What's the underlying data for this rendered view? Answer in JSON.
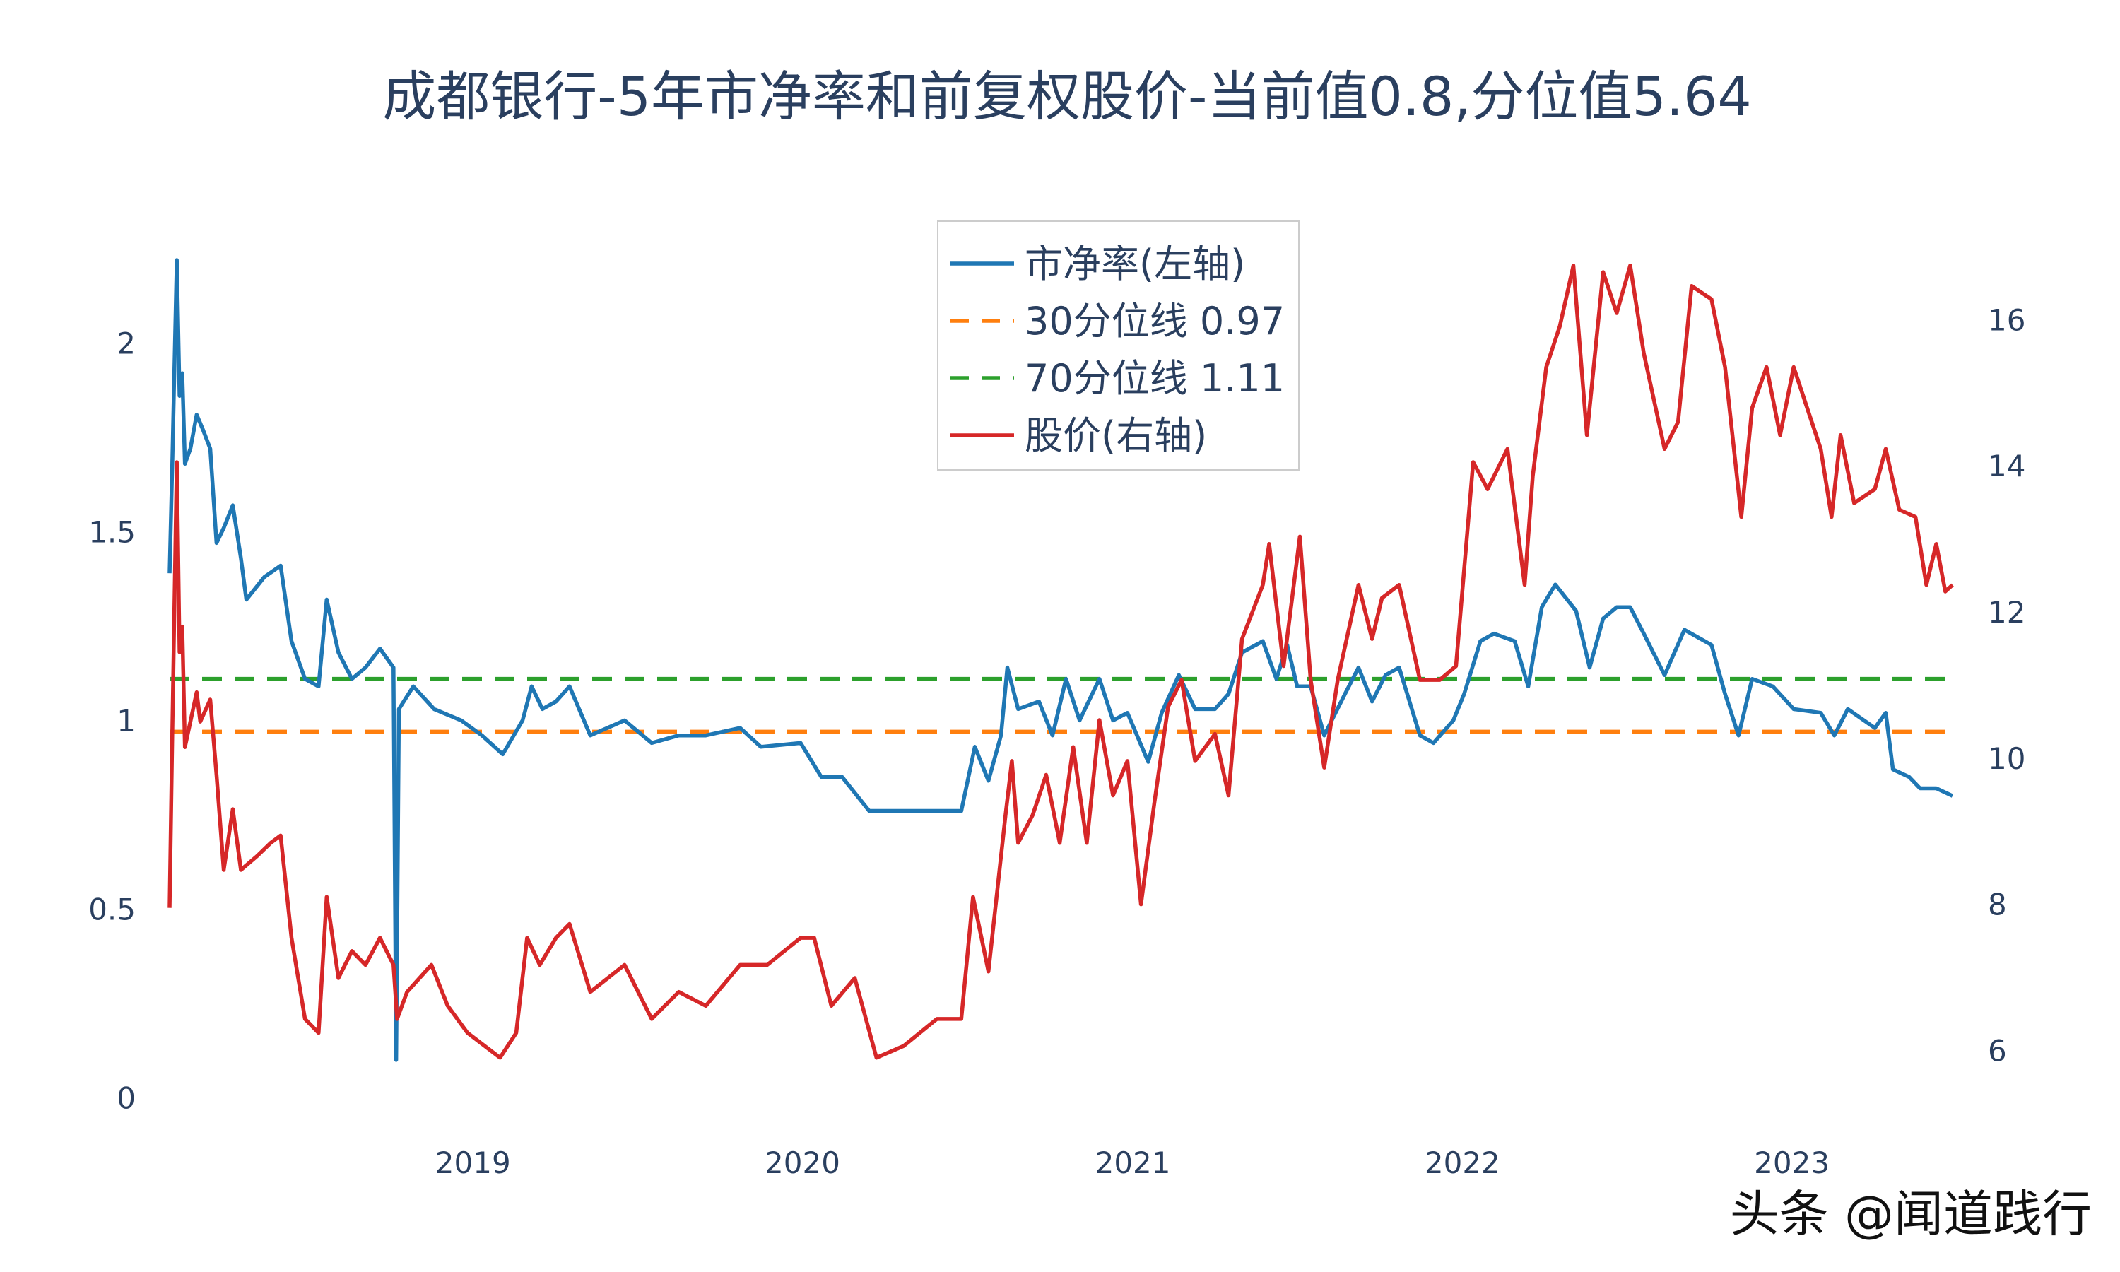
{
  "chart_data": {
    "type": "line",
    "title": "成都银行-5年市净率和前复权股价-当前值0.8,分位值5.64",
    "xlabel": "",
    "ylabel_left": "",
    "ylabel_right": "",
    "x_range": [
      "2018-01-30",
      "2023-06-28"
    ],
    "x_ticks": [
      {
        "date": "2019-01-01",
        "label": "2019"
      },
      {
        "date": "2020-01-01",
        "label": "2020"
      },
      {
        "date": "2021-01-01",
        "label": "2021"
      },
      {
        "date": "2022-01-01",
        "label": "2022"
      },
      {
        "date": "2023-01-01",
        "label": "2023"
      }
    ],
    "y_left_range": [
      -0.08,
      2.25
    ],
    "y_left_ticks": [
      {
        "value": 0,
        "label": "0"
      },
      {
        "value": 0.5,
        "label": "0.5"
      },
      {
        "value": 1,
        "label": "1"
      },
      {
        "value": 1.5,
        "label": "1.5"
      },
      {
        "value": 2,
        "label": "2"
      }
    ],
    "y_right_range": [
      4.94,
      16.97
    ],
    "y_right_ticks": [
      {
        "value": 6,
        "label": "6"
      },
      {
        "value": 8,
        "label": "8"
      },
      {
        "value": 10,
        "label": "10"
      },
      {
        "value": 12,
        "label": "12"
      },
      {
        "value": 14,
        "label": "14"
      },
      {
        "value": 16,
        "label": "16"
      }
    ],
    "grid": false,
    "legend_placement": "top-center",
    "series": [
      {
        "name": "市净率(左轴)",
        "axis": "left",
        "color": "#1f77b4",
        "dash": "solid",
        "points": [
          [
            "2018-01-30",
            1.39
          ],
          [
            "2018-02-02",
            1.68
          ],
          [
            "2018-02-07",
            2.22
          ],
          [
            "2018-02-10",
            1.86
          ],
          [
            "2018-02-13",
            1.92
          ],
          [
            "2018-02-16",
            1.68
          ],
          [
            "2018-02-22",
            1.72
          ],
          [
            "2018-03-01",
            1.81
          ],
          [
            "2018-03-08",
            1.77
          ],
          [
            "2018-03-16",
            1.72
          ],
          [
            "2018-03-23",
            1.47
          ],
          [
            "2018-03-31",
            1.51
          ],
          [
            "2018-04-10",
            1.57
          ],
          [
            "2018-04-19",
            1.43
          ],
          [
            "2018-04-25",
            1.32
          ],
          [
            "2018-05-15",
            1.38
          ],
          [
            "2018-06-02",
            1.41
          ],
          [
            "2018-06-14",
            1.21
          ],
          [
            "2018-06-29",
            1.11
          ],
          [
            "2018-07-14",
            1.09
          ],
          [
            "2018-07-23",
            1.32
          ],
          [
            "2018-08-05",
            1.18
          ],
          [
            "2018-08-20",
            1.11
          ],
          [
            "2018-09-04",
            1.14
          ],
          [
            "2018-09-20",
            1.19
          ],
          [
            "2018-10-05",
            1.14
          ],
          [
            "2018-10-08",
            0.1
          ],
          [
            "2018-10-11",
            1.03
          ],
          [
            "2018-10-27",
            1.09
          ],
          [
            "2018-11-19",
            1.03
          ],
          [
            "2018-12-19",
            1.0
          ],
          [
            "2019-01-11",
            0.96
          ],
          [
            "2019-02-03",
            0.91
          ],
          [
            "2019-02-25",
            1.0
          ],
          [
            "2019-03-07",
            1.09
          ],
          [
            "2019-03-19",
            1.03
          ],
          [
            "2019-04-03",
            1.05
          ],
          [
            "2019-04-18",
            1.09
          ],
          [
            "2019-05-11",
            0.96
          ],
          [
            "2019-06-18",
            1.0
          ],
          [
            "2019-07-18",
            0.94
          ],
          [
            "2019-08-17",
            0.96
          ],
          [
            "2019-09-16",
            0.96
          ],
          [
            "2019-10-24",
            0.98
          ],
          [
            "2019-11-16",
            0.93
          ],
          [
            "2019-12-30",
            0.94
          ],
          [
            "2020-01-22",
            0.85
          ],
          [
            "2020-02-14",
            0.85
          ],
          [
            "2020-03-15",
            0.76
          ],
          [
            "2020-04-14",
            0.76
          ],
          [
            "2020-05-14",
            0.76
          ],
          [
            "2020-06-25",
            0.76
          ],
          [
            "2020-07-10",
            0.93
          ],
          [
            "2020-07-25",
            0.84
          ],
          [
            "2020-08-08",
            0.96
          ],
          [
            "2020-08-15",
            1.14
          ],
          [
            "2020-08-27",
            1.03
          ],
          [
            "2020-09-19",
            1.05
          ],
          [
            "2020-10-04",
            0.96
          ],
          [
            "2020-10-19",
            1.11
          ],
          [
            "2020-11-03",
            1.0
          ],
          [
            "2020-11-25",
            1.11
          ],
          [
            "2020-12-10",
            1.0
          ],
          [
            "2020-12-26",
            1.02
          ],
          [
            "2021-01-18",
            0.89
          ],
          [
            "2021-02-02",
            1.02
          ],
          [
            "2021-02-21",
            1.12
          ],
          [
            "2021-03-11",
            1.03
          ],
          [
            "2021-04-02",
            1.03
          ],
          [
            "2021-04-17",
            1.07
          ],
          [
            "2021-05-02",
            1.18
          ],
          [
            "2021-05-25",
            1.21
          ],
          [
            "2021-06-09",
            1.11
          ],
          [
            "2021-06-21",
            1.2
          ],
          [
            "2021-07-02",
            1.09
          ],
          [
            "2021-07-17",
            1.09
          ],
          [
            "2021-08-01",
            0.96
          ],
          [
            "2021-08-24",
            1.07
          ],
          [
            "2021-09-08",
            1.14
          ],
          [
            "2021-09-23",
            1.05
          ],
          [
            "2021-10-08",
            1.12
          ],
          [
            "2021-10-23",
            1.14
          ],
          [
            "2021-11-15",
            0.96
          ],
          [
            "2021-11-30",
            0.94
          ],
          [
            "2021-12-22",
            1.0
          ],
          [
            "2022-01-03",
            1.07
          ],
          [
            "2022-01-21",
            1.21
          ],
          [
            "2022-02-05",
            1.23
          ],
          [
            "2022-02-28",
            1.21
          ],
          [
            "2022-03-15",
            1.09
          ],
          [
            "2022-03-30",
            1.3
          ],
          [
            "2022-04-14",
            1.36
          ],
          [
            "2022-05-07",
            1.29
          ],
          [
            "2022-05-22",
            1.14
          ],
          [
            "2022-06-06",
            1.27
          ],
          [
            "2022-06-21",
            1.3
          ],
          [
            "2022-07-06",
            1.3
          ],
          [
            "2022-07-21",
            1.23
          ],
          [
            "2022-08-13",
            1.12
          ],
          [
            "2022-09-04",
            1.24
          ],
          [
            "2022-10-04",
            1.2
          ],
          [
            "2022-10-19",
            1.07
          ],
          [
            "2022-11-03",
            0.96
          ],
          [
            "2022-11-18",
            1.11
          ],
          [
            "2022-12-11",
            1.09
          ],
          [
            "2023-01-03",
            1.03
          ],
          [
            "2023-02-02",
            1.02
          ],
          [
            "2023-02-17",
            0.96
          ],
          [
            "2023-03-04",
            1.03
          ],
          [
            "2023-04-03",
            0.98
          ],
          [
            "2023-04-15",
            1.02
          ],
          [
            "2023-04-23",
            0.87
          ],
          [
            "2023-05-11",
            0.85
          ],
          [
            "2023-05-23",
            0.82
          ],
          [
            "2023-06-10",
            0.82
          ],
          [
            "2023-06-28",
            0.8
          ]
        ]
      },
      {
        "name": "30分位线 0.97",
        "axis": "left",
        "color": "#ff7f0e",
        "dash": "dashed",
        "constant": 0.97
      },
      {
        "name": "70分位线 1.11",
        "axis": "left",
        "color": "#2ca02c",
        "dash": "dashed",
        "constant": 1.11
      },
      {
        "name": "股价(右轴)",
        "axis": "right",
        "color": "#d62728",
        "dash": "solid",
        "points": [
          [
            "2018-01-30",
            7.95
          ],
          [
            "2018-02-02",
            10.33
          ],
          [
            "2018-02-07",
            14.05
          ],
          [
            "2018-02-10",
            11.45
          ],
          [
            "2018-02-13",
            11.8
          ],
          [
            "2018-02-16",
            10.15
          ],
          [
            "2018-03-01",
            10.9
          ],
          [
            "2018-03-05",
            10.5
          ],
          [
            "2018-03-16",
            10.8
          ],
          [
            "2018-03-23",
            9.77
          ],
          [
            "2018-03-31",
            8.47
          ],
          [
            "2018-04-10",
            9.3
          ],
          [
            "2018-04-19",
            8.47
          ],
          [
            "2018-05-07",
            8.66
          ],
          [
            "2018-05-22",
            8.84
          ],
          [
            "2018-06-02",
            8.94
          ],
          [
            "2018-06-14",
            7.54
          ],
          [
            "2018-06-29",
            6.43
          ],
          [
            "2018-07-14",
            6.24
          ],
          [
            "2018-07-23",
            8.1
          ],
          [
            "2018-08-05",
            6.99
          ],
          [
            "2018-08-20",
            7.36
          ],
          [
            "2018-09-04",
            7.17
          ],
          [
            "2018-09-20",
            7.54
          ],
          [
            "2018-10-05",
            7.17
          ],
          [
            "2018-10-09",
            6.43
          ],
          [
            "2018-10-20",
            6.8
          ],
          [
            "2018-11-16",
            7.17
          ],
          [
            "2018-12-04",
            6.61
          ],
          [
            "2018-12-26",
            6.24
          ],
          [
            "2019-01-31",
            5.9
          ],
          [
            "2019-02-18",
            6.24
          ],
          [
            "2019-03-02",
            7.54
          ],
          [
            "2019-03-16",
            7.17
          ],
          [
            "2019-04-03",
            7.54
          ],
          [
            "2019-04-18",
            7.73
          ],
          [
            "2019-05-11",
            6.8
          ],
          [
            "2019-06-18",
            7.17
          ],
          [
            "2019-07-18",
            6.43
          ],
          [
            "2019-08-17",
            6.8
          ],
          [
            "2019-09-16",
            6.61
          ],
          [
            "2019-10-24",
            7.17
          ],
          [
            "2019-11-23",
            7.17
          ],
          [
            "2019-12-30",
            7.54
          ],
          [
            "2020-01-14",
            7.54
          ],
          [
            "2020-02-02",
            6.61
          ],
          [
            "2020-02-28",
            6.99
          ],
          [
            "2020-03-23",
            5.9
          ],
          [
            "2020-04-22",
            6.06
          ],
          [
            "2020-05-29",
            6.43
          ],
          [
            "2020-06-25",
            6.43
          ],
          [
            "2020-07-08",
            8.1
          ],
          [
            "2020-07-25",
            7.08
          ],
          [
            "2020-08-13",
            9.22
          ],
          [
            "2020-08-20",
            9.96
          ],
          [
            "2020-08-27",
            8.84
          ],
          [
            "2020-09-12",
            9.22
          ],
          [
            "2020-09-27",
            9.77
          ],
          [
            "2020-10-12",
            8.84
          ],
          [
            "2020-10-27",
            10.15
          ],
          [
            "2020-11-11",
            8.84
          ],
          [
            "2020-11-25",
            10.52
          ],
          [
            "2020-12-10",
            9.49
          ],
          [
            "2020-12-26",
            9.96
          ],
          [
            "2021-01-10",
            8.0
          ],
          [
            "2021-01-25",
            9.4
          ],
          [
            "2021-02-09",
            10.7
          ],
          [
            "2021-02-24",
            11.07
          ],
          [
            "2021-03-11",
            9.96
          ],
          [
            "2021-04-02",
            10.33
          ],
          [
            "2021-04-17",
            9.49
          ],
          [
            "2021-05-02",
            11.63
          ],
          [
            "2021-05-25",
            12.37
          ],
          [
            "2021-06-01",
            12.93
          ],
          [
            "2021-06-17",
            11.26
          ],
          [
            "2021-07-05",
            13.03
          ],
          [
            "2021-07-17",
            11.07
          ],
          [
            "2021-08-01",
            9.87
          ],
          [
            "2021-08-16",
            11.07
          ],
          [
            "2021-09-08",
            12.37
          ],
          [
            "2021-09-23",
            11.63
          ],
          [
            "2021-10-04",
            12.19
          ],
          [
            "2021-10-23",
            12.37
          ],
          [
            "2021-11-15",
            11.07
          ],
          [
            "2021-12-07",
            11.07
          ],
          [
            "2021-12-25",
            11.26
          ],
          [
            "2022-01-13",
            14.05
          ],
          [
            "2022-01-29",
            13.68
          ],
          [
            "2022-02-20",
            14.23
          ],
          [
            "2022-03-11",
            12.37
          ],
          [
            "2022-03-20",
            13.86
          ],
          [
            "2022-04-04",
            15.35
          ],
          [
            "2022-04-19",
            15.91
          ],
          [
            "2022-05-04",
            16.74
          ],
          [
            "2022-05-19",
            14.42
          ],
          [
            "2022-06-06",
            16.65
          ],
          [
            "2022-06-21",
            16.09
          ],
          [
            "2022-07-06",
            16.74
          ],
          [
            "2022-07-21",
            15.54
          ],
          [
            "2022-08-13",
            14.23
          ],
          [
            "2022-08-28",
            14.6
          ],
          [
            "2022-09-12",
            16.46
          ],
          [
            "2022-10-04",
            16.28
          ],
          [
            "2022-10-19",
            15.35
          ],
          [
            "2022-11-06",
            13.3
          ],
          [
            "2022-11-18",
            14.79
          ],
          [
            "2022-12-04",
            15.35
          ],
          [
            "2022-12-19",
            14.42
          ],
          [
            "2023-01-03",
            15.35
          ],
          [
            "2023-01-18",
            14.79
          ],
          [
            "2023-02-02",
            14.23
          ],
          [
            "2023-02-14",
            13.3
          ],
          [
            "2023-02-24",
            14.42
          ],
          [
            "2023-03-11",
            13.49
          ],
          [
            "2023-04-03",
            13.68
          ],
          [
            "2023-04-15",
            14.23
          ],
          [
            "2023-04-30",
            13.4
          ],
          [
            "2023-05-18",
            13.3
          ],
          [
            "2023-05-30",
            12.37
          ],
          [
            "2023-06-10",
            12.93
          ],
          [
            "2023-06-20",
            12.28
          ],
          [
            "2023-06-28",
            12.37
          ]
        ]
      }
    ]
  },
  "watermark": "头条 @闻道践行"
}
